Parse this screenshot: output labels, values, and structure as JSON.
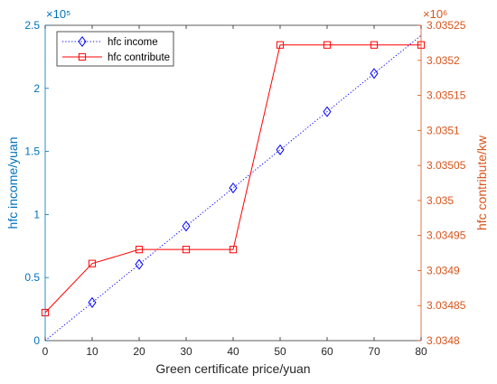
{
  "chart_data": {
    "type": "line",
    "xlabel": "Green certificate price/yuan",
    "x": [
      0,
      10,
      20,
      30,
      40,
      50,
      60,
      70,
      80
    ],
    "xlim": [
      0,
      80
    ],
    "xticks": [
      "0",
      "10",
      "20",
      "30",
      "40",
      "50",
      "60",
      "70",
      "80"
    ],
    "grid": false,
    "legend_position": "top-left",
    "y_left": {
      "label": "hfc income/yuan",
      "exponent_label": "×10⁵",
      "lim": [
        0,
        2.5
      ],
      "ticks": [
        0,
        0.5,
        1,
        1.5,
        2,
        2.5
      ],
      "tick_labels": [
        "0",
        "0.5",
        "1",
        "1.5",
        "2",
        "2.5"
      ],
      "color": "#0072BD"
    },
    "y_right": {
      "label": "hfc contribute/kw",
      "exponent_label": "×10⁶",
      "lim": [
        3.0348,
        3.03525
      ],
      "ticks": [
        3.0348,
        3.03485,
        3.0349,
        3.03495,
        3.035,
        3.03505,
        3.0351,
        3.03515,
        3.0352,
        3.03525
      ],
      "tick_labels": [
        "3.0348",
        "3.03485",
        "3.0349",
        "3.03495",
        "3.035",
        "3.03505",
        "3.0351",
        "3.03515",
        "3.0352",
        "3.03525"
      ],
      "color": "#D95319"
    },
    "series": [
      {
        "name": "hfc income",
        "axis": "left",
        "color": "#0000ff",
        "line_style": "dotted",
        "marker": "diamond",
        "x": [
          0,
          10,
          20,
          30,
          40,
          50,
          60,
          70,
          80
        ],
        "values": [
          0,
          0.302,
          0.605,
          0.908,
          1.21,
          1.513,
          1.815,
          2.118,
          2.42
        ],
        "marker_indices": [
          1,
          2,
          3,
          4,
          5,
          6,
          7
        ]
      },
      {
        "name": "hfc contribute",
        "axis": "right",
        "color": "#ff0000",
        "line_style": "solid",
        "marker": "square",
        "x": [
          0,
          10,
          20,
          30,
          40,
          50,
          60,
          70,
          80
        ],
        "values": [
          3.03484,
          3.03491,
          3.03493,
          3.03493,
          3.03493,
          3.035222,
          3.035222,
          3.035222,
          3.035222
        ],
        "marker_indices": [
          0,
          1,
          2,
          3,
          4,
          5,
          6,
          7,
          8
        ]
      }
    ]
  }
}
